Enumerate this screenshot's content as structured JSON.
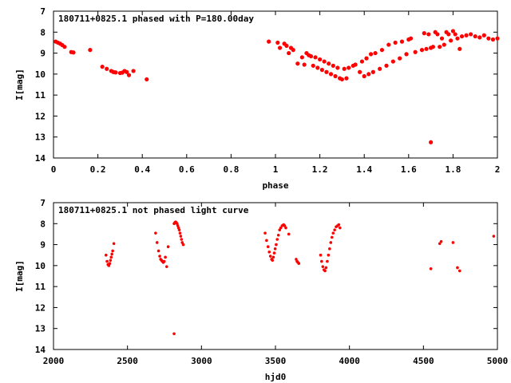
{
  "chart_data": [
    {
      "type": "scatter",
      "title": "180711+0825.1 phased with P=180.00day",
      "xlabel": "phase",
      "ylabel": "I[mag]",
      "xlim": [
        0,
        2
      ],
      "ylim": [
        7,
        14
      ],
      "y_inverted": true,
      "xticks": [
        "0",
        "0.2",
        "0.4",
        "0.6",
        "0.8",
        "1",
        "1.2",
        "1.4",
        "1.6",
        "1.8",
        "2"
      ],
      "xtick_values": [
        0,
        0.2,
        0.4,
        0.6,
        0.8,
        1.0,
        1.2,
        1.4,
        1.6,
        1.8,
        2.0
      ],
      "yticks": [
        "7",
        "8",
        "9",
        "10",
        "11",
        "12",
        "13",
        "14"
      ],
      "ytick_values": [
        7,
        8,
        9,
        10,
        11,
        12,
        13,
        14
      ],
      "grid": false,
      "marker_color": "#ff0000",
      "series": [
        {
          "points": [
            [
              0.01,
              8.45
            ],
            [
              0.02,
              8.5
            ],
            [
              0.03,
              8.55
            ],
            [
              0.04,
              8.62
            ],
            [
              0.05,
              8.7
            ],
            [
              0.08,
              8.95
            ],
            [
              0.09,
              8.97
            ],
            [
              0.165,
              8.85
            ],
            [
              0.22,
              9.65
            ],
            [
              0.24,
              9.75
            ],
            [
              0.26,
              9.85
            ],
            [
              0.27,
              9.9
            ],
            [
              0.28,
              9.92
            ],
            [
              0.3,
              9.95
            ],
            [
              0.31,
              9.93
            ],
            [
              0.32,
              9.85
            ],
            [
              0.33,
              9.9
            ],
            [
              0.34,
              10.05
            ],
            [
              0.36,
              9.85
            ],
            [
              0.42,
              10.25
            ],
            [
              0.97,
              8.45
            ],
            [
              1.01,
              8.5
            ],
            [
              1.02,
              8.75
            ],
            [
              1.04,
              8.55
            ],
            [
              1.05,
              8.65
            ],
            [
              1.06,
              9.0
            ],
            [
              1.07,
              8.75
            ],
            [
              1.08,
              8.85
            ],
            [
              1.1,
              9.5
            ],
            [
              1.12,
              9.2
            ],
            [
              1.13,
              9.55
            ],
            [
              1.14,
              9.0
            ],
            [
              1.15,
              9.1
            ],
            [
              1.16,
              9.15
            ],
            [
              1.17,
              9.6
            ],
            [
              1.18,
              9.2
            ],
            [
              1.19,
              9.7
            ],
            [
              1.2,
              9.3
            ],
            [
              1.21,
              9.8
            ],
            [
              1.22,
              9.4
            ],
            [
              1.23,
              9.9
            ],
            [
              1.24,
              9.5
            ],
            [
              1.25,
              10.0
            ],
            [
              1.26,
              9.6
            ],
            [
              1.27,
              10.1
            ],
            [
              1.28,
              9.7
            ],
            [
              1.29,
              10.2
            ],
            [
              1.3,
              10.25
            ],
            [
              1.31,
              9.75
            ],
            [
              1.32,
              10.2
            ],
            [
              1.33,
              9.7
            ],
            [
              1.35,
              9.6
            ],
            [
              1.36,
              9.55
            ],
            [
              1.38,
              9.9
            ],
            [
              1.39,
              9.4
            ],
            [
              1.4,
              10.1
            ],
            [
              1.41,
              9.25
            ],
            [
              1.42,
              10.0
            ],
            [
              1.43,
              9.05
            ],
            [
              1.44,
              9.9
            ],
            [
              1.45,
              9.0
            ],
            [
              1.47,
              9.75
            ],
            [
              1.48,
              8.85
            ],
            [
              1.5,
              9.6
            ],
            [
              1.51,
              8.6
            ],
            [
              1.53,
              9.4
            ],
            [
              1.54,
              8.5
            ],
            [
              1.56,
              9.25
            ],
            [
              1.57,
              8.45
            ],
            [
              1.59,
              9.05
            ],
            [
              1.6,
              8.35
            ],
            [
              1.61,
              8.3
            ],
            [
              1.63,
              8.95
            ],
            [
              1.66,
              8.85
            ],
            [
              1.67,
              8.05
            ],
            [
              1.68,
              8.8
            ],
            [
              1.69,
              8.1
            ],
            [
              1.7,
              8.75
            ],
            [
              1.7,
              13.25
            ],
            [
              1.71,
              8.7
            ],
            [
              1.72,
              8.0
            ],
            [
              1.73,
              8.1
            ],
            [
              1.74,
              8.7
            ],
            [
              1.75,
              8.3
            ],
            [
              1.76,
              8.6
            ],
            [
              1.77,
              8.0
            ],
            [
              1.78,
              8.1
            ],
            [
              1.79,
              8.4
            ],
            [
              1.8,
              7.95
            ],
            [
              1.81,
              8.1
            ],
            [
              1.82,
              8.3
            ],
            [
              1.83,
              8.8
            ],
            [
              1.84,
              8.2
            ],
            [
              1.86,
              8.15
            ],
            [
              1.88,
              8.1
            ],
            [
              1.9,
              8.2
            ],
            [
              1.92,
              8.25
            ],
            [
              1.94,
              8.15
            ],
            [
              1.96,
              8.3
            ],
            [
              1.98,
              8.35
            ],
            [
              2.0,
              8.3
            ]
          ]
        }
      ]
    },
    {
      "type": "scatter",
      "title": "180711+0825.1 not phased light curve",
      "xlabel": "hjd0",
      "ylabel": "I[mag]",
      "xlim": [
        2000,
        5000
      ],
      "ylim": [
        7,
        14
      ],
      "y_inverted": true,
      "xticks": [
        "2000",
        "2500",
        "3000",
        "3500",
        "4000",
        "4500",
        "5000"
      ],
      "xtick_values": [
        2000,
        2500,
        3000,
        3500,
        4000,
        4500,
        5000
      ],
      "yticks": [
        "7",
        "8",
        "9",
        "10",
        "11",
        "12",
        "13",
        "14"
      ],
      "ytick_values": [
        7,
        8,
        9,
        10,
        11,
        12,
        13,
        14
      ],
      "grid": false,
      "marker_color": "#ff0000",
      "series": [
        {
          "points": [
            [
              2355,
              9.5
            ],
            [
              2362,
              9.8
            ],
            [
              2368,
              9.95
            ],
            [
              2374,
              10.0
            ],
            [
              2380,
              9.9
            ],
            [
              2385,
              9.75
            ],
            [
              2390,
              9.6
            ],
            [
              2395,
              9.45
            ],
            [
              2400,
              9.3
            ],
            [
              2408,
              8.95
            ],
            [
              2690,
              8.45
            ],
            [
              2700,
              8.9
            ],
            [
              2710,
              9.3
            ],
            [
              2718,
              9.55
            ],
            [
              2724,
              9.7
            ],
            [
              2730,
              9.75
            ],
            [
              2736,
              9.8
            ],
            [
              2742,
              9.85
            ],
            [
              2748,
              9.8
            ],
            [
              2756,
              9.6
            ],
            [
              2765,
              10.05
            ],
            [
              2775,
              9.1
            ],
            [
              2815,
              8.0
            ],
            [
              2820,
              7.95
            ],
            [
              2825,
              7.92
            ],
            [
              2830,
              7.95
            ],
            [
              2835,
              8.0
            ],
            [
              2840,
              8.1
            ],
            [
              2845,
              8.2
            ],
            [
              2850,
              8.3
            ],
            [
              2855,
              8.45
            ],
            [
              2860,
              8.6
            ],
            [
              2865,
              8.75
            ],
            [
              2870,
              8.9
            ],
            [
              2877,
              9.0
            ],
            [
              2815,
              13.25
            ],
            [
              3430,
              8.45
            ],
            [
              3440,
              8.8
            ],
            [
              3450,
              9.1
            ],
            [
              3458,
              9.35
            ],
            [
              3466,
              9.55
            ],
            [
              3474,
              9.7
            ],
            [
              3480,
              9.75
            ],
            [
              3486,
              9.6
            ],
            [
              3492,
              9.4
            ],
            [
              3498,
              9.2
            ],
            [
              3505,
              9.0
            ],
            [
              3512,
              8.75
            ],
            [
              3520,
              8.55
            ],
            [
              3528,
              8.3
            ],
            [
              3536,
              8.2
            ],
            [
              3545,
              8.1
            ],
            [
              3555,
              8.05
            ],
            [
              3562,
              8.1
            ],
            [
              3570,
              8.2
            ],
            [
              3590,
              8.5
            ],
            [
              3640,
              9.7
            ],
            [
              3646,
              9.8
            ],
            [
              3652,
              9.85
            ],
            [
              3658,
              9.9
            ],
            [
              3805,
              9.5
            ],
            [
              3812,
              9.8
            ],
            [
              3820,
              10.05
            ],
            [
              3828,
              10.2
            ],
            [
              3835,
              10.25
            ],
            [
              3842,
              10.1
            ],
            [
              3850,
              9.8
            ],
            [
              3858,
              9.5
            ],
            [
              3866,
              9.2
            ],
            [
              3874,
              8.9
            ],
            [
              3882,
              8.65
            ],
            [
              3890,
              8.45
            ],
            [
              3900,
              8.3
            ],
            [
              3910,
              8.15
            ],
            [
              3920,
              8.1
            ],
            [
              3928,
              8.05
            ],
            [
              3936,
              8.2
            ],
            [
              4550,
              10.15
            ],
            [
              4610,
              8.95
            ],
            [
              4620,
              8.85
            ],
            [
              4700,
              8.9
            ],
            [
              4730,
              10.1
            ],
            [
              4745,
              10.25
            ],
            [
              4975,
              8.6
            ]
          ]
        }
      ]
    }
  ]
}
